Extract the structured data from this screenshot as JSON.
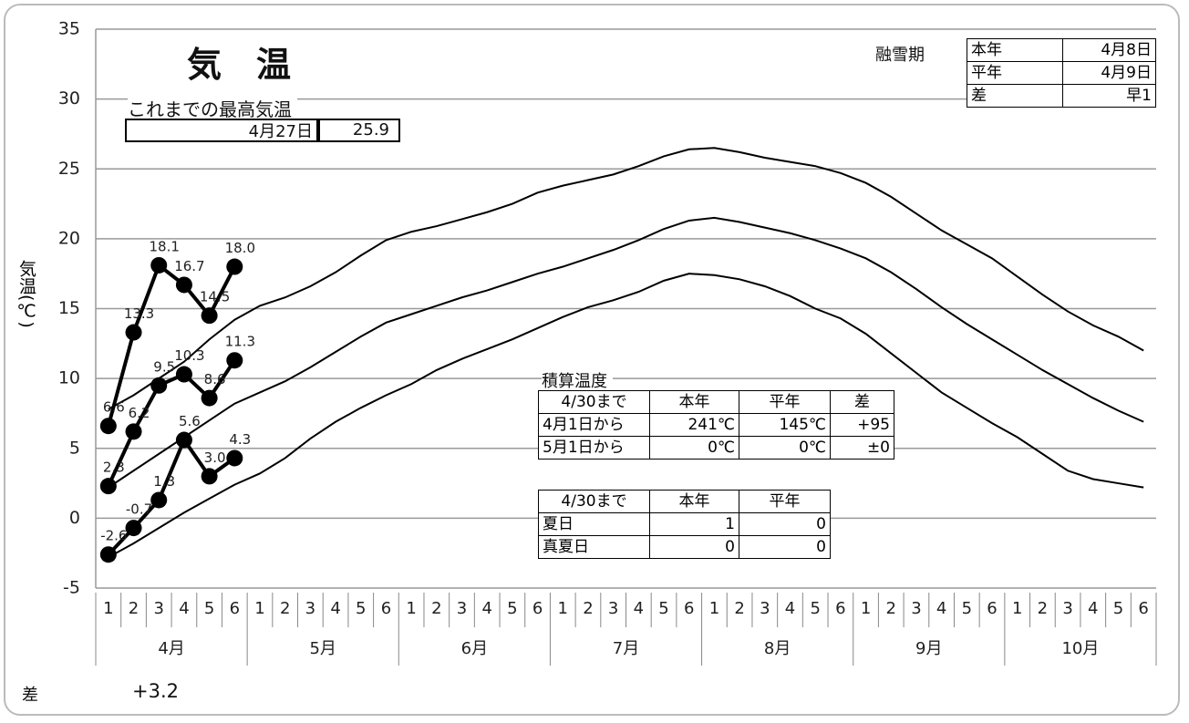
{
  "record": {
    "label": "これまでの最高気温",
    "date": "4月27日",
    "value": 25.9
  },
  "snowmelt": {
    "label": "融雪期",
    "rows": [
      [
        "本年",
        "4月8日"
      ],
      [
        "平年",
        "4月9日"
      ],
      [
        "差",
        "早1"
      ]
    ]
  },
  "accum": {
    "label": "積算温度",
    "header": [
      "4/30まで",
      "本年",
      "平年",
      "差"
    ],
    "rows": [
      [
        "4月1日から",
        "241℃",
        "145℃",
        "+95"
      ],
      [
        "5月1日から",
        "0℃",
        "0℃",
        "±0"
      ]
    ]
  },
  "hot_days": {
    "header": [
      "4/30まで",
      "本年",
      "平年"
    ],
    "rows": [
      [
        "夏日",
        1,
        0
      ],
      [
        "真夏日",
        0,
        0
      ]
    ]
  },
  "footer": {
    "label": "差",
    "value": "+3.2"
  },
  "chart_data": {
    "type": "line",
    "title": "気　温",
    "ylabel": "気温(℃)",
    "categories": [
      "1",
      "2",
      "3",
      "4",
      "5",
      "6",
      "1",
      "2",
      "3",
      "4",
      "5",
      "6",
      "1",
      "2",
      "3",
      "4",
      "5",
      "6",
      "1",
      "2",
      "3",
      "4",
      "5",
      "6",
      "1",
      "2",
      "3",
      "4",
      "5",
      "6",
      "1",
      "2",
      "3",
      "4",
      "5",
      "6",
      "1",
      "2",
      "3",
      "4",
      "5",
      "6"
    ],
    "groups": [
      "4月",
      "5月",
      "6月",
      "7月",
      "8月",
      "9月",
      "10月"
    ],
    "ylim": [
      -5,
      35
    ],
    "yticks": [
      -5,
      0,
      5,
      10,
      15,
      20,
      25,
      30,
      35
    ],
    "grid": true,
    "negative_label_color": "#ff0000",
    "series": [
      {
        "color": "#000000",
        "values": [
          7.8,
          8.8,
          10.0,
          11.2,
          12.8,
          14.2,
          15.2,
          15.8,
          16.6,
          17.6,
          18.8,
          19.9,
          20.5,
          20.9,
          21.4,
          21.9,
          22.5,
          23.3,
          23.8,
          24.2,
          24.6,
          25.2,
          25.9,
          26.4,
          26.5,
          26.2,
          25.8,
          25.5,
          25.2,
          24.7,
          24.0,
          23.0,
          21.8,
          20.6,
          19.6,
          18.6,
          17.3,
          16.0,
          14.8,
          13.8,
          13.0,
          12.0
        ]
      },
      {
        "color": "#000000",
        "values": [
          2.2,
          3.4,
          4.6,
          5.8,
          7.0,
          8.2,
          9.0,
          9.8,
          10.8,
          11.9,
          13.0,
          14.0,
          14.6,
          15.2,
          15.8,
          16.3,
          16.9,
          17.5,
          18.0,
          18.6,
          19.2,
          19.9,
          20.7,
          21.3,
          21.5,
          21.2,
          20.8,
          20.4,
          19.9,
          19.3,
          18.6,
          17.6,
          16.4,
          15.1,
          13.9,
          12.8,
          11.7,
          10.6,
          9.6,
          8.6,
          7.7,
          6.9
        ]
      },
      {
        "color": "#000000",
        "values": [
          -2.8,
          -1.8,
          -0.7,
          0.4,
          1.4,
          2.4,
          3.2,
          4.3,
          5.7,
          6.9,
          7.9,
          8.8,
          9.6,
          10.6,
          11.4,
          12.1,
          12.8,
          13.6,
          14.4,
          15.1,
          15.6,
          16.2,
          17.0,
          17.5,
          17.4,
          17.1,
          16.6,
          15.9,
          15.0,
          14.3,
          13.2,
          11.8,
          10.4,
          9.0,
          7.9,
          6.8,
          5.8,
          4.6,
          3.4,
          2.8,
          2.5,
          2.2
        ]
      },
      {
        "color": "#000000",
        "markers": true,
        "values": [
          6.6,
          13.3,
          18.1,
          16.7,
          14.5,
          18.0,
          null,
          null,
          null,
          null,
          null,
          null,
          null,
          null,
          null,
          null,
          null,
          null,
          null,
          null,
          null,
          null,
          null,
          null,
          null,
          null,
          null,
          null,
          null,
          null,
          null,
          null,
          null,
          null,
          null,
          null,
          null,
          null,
          null,
          null,
          null,
          null
        ],
        "value_labels": [
          "6.6",
          "13.3",
          "18.1",
          "16.7",
          "14.5",
          "18.0",
          null,
          null,
          null,
          null,
          null,
          null,
          null,
          null,
          null,
          null,
          null,
          null,
          null,
          null,
          null,
          null,
          null,
          null,
          null,
          null,
          null,
          null,
          null,
          null,
          null,
          null,
          null,
          null,
          null,
          null,
          null,
          null,
          null,
          null,
          null,
          null
        ]
      },
      {
        "color": "#000000",
        "markers": true,
        "values": [
          2.3,
          6.2,
          9.5,
          10.3,
          8.6,
          11.3,
          null,
          null,
          null,
          null,
          null,
          null,
          null,
          null,
          null,
          null,
          null,
          null,
          null,
          null,
          null,
          null,
          null,
          null,
          null,
          null,
          null,
          null,
          null,
          null,
          null,
          null,
          null,
          null,
          null,
          null,
          null,
          null,
          null,
          null,
          null,
          null
        ],
        "value_labels": [
          "2.3",
          "6.2",
          "9.5",
          "10.3",
          "8.6",
          "11.3",
          null,
          null,
          null,
          null,
          null,
          null,
          null,
          null,
          null,
          null,
          null,
          null,
          null,
          null,
          null,
          null,
          null,
          null,
          null,
          null,
          null,
          null,
          null,
          null,
          null,
          null,
          null,
          null,
          null,
          null,
          null,
          null,
          null,
          null,
          null,
          null
        ]
      },
      {
        "color": "#000000",
        "markers": true,
        "values": [
          -2.6,
          -0.7,
          1.3,
          5.6,
          3.0,
          4.3,
          null,
          null,
          null,
          null,
          null,
          null,
          null,
          null,
          null,
          null,
          null,
          null,
          null,
          null,
          null,
          null,
          null,
          null,
          null,
          null,
          null,
          null,
          null,
          null,
          null,
          null,
          null,
          null,
          null,
          null,
          null,
          null,
          null,
          null,
          null,
          null
        ],
        "value_labels": [
          "-2.6",
          "-0.7",
          "1.3",
          "5.6",
          "3.0",
          "4.3",
          null,
          null,
          null,
          null,
          null,
          null,
          null,
          null,
          null,
          null,
          null,
          null,
          null,
          null,
          null,
          null,
          null,
          null,
          null,
          null,
          null,
          null,
          null,
          null,
          null,
          null,
          null,
          null,
          null,
          null,
          null,
          null,
          null,
          null,
          null,
          null
        ]
      }
    ]
  }
}
